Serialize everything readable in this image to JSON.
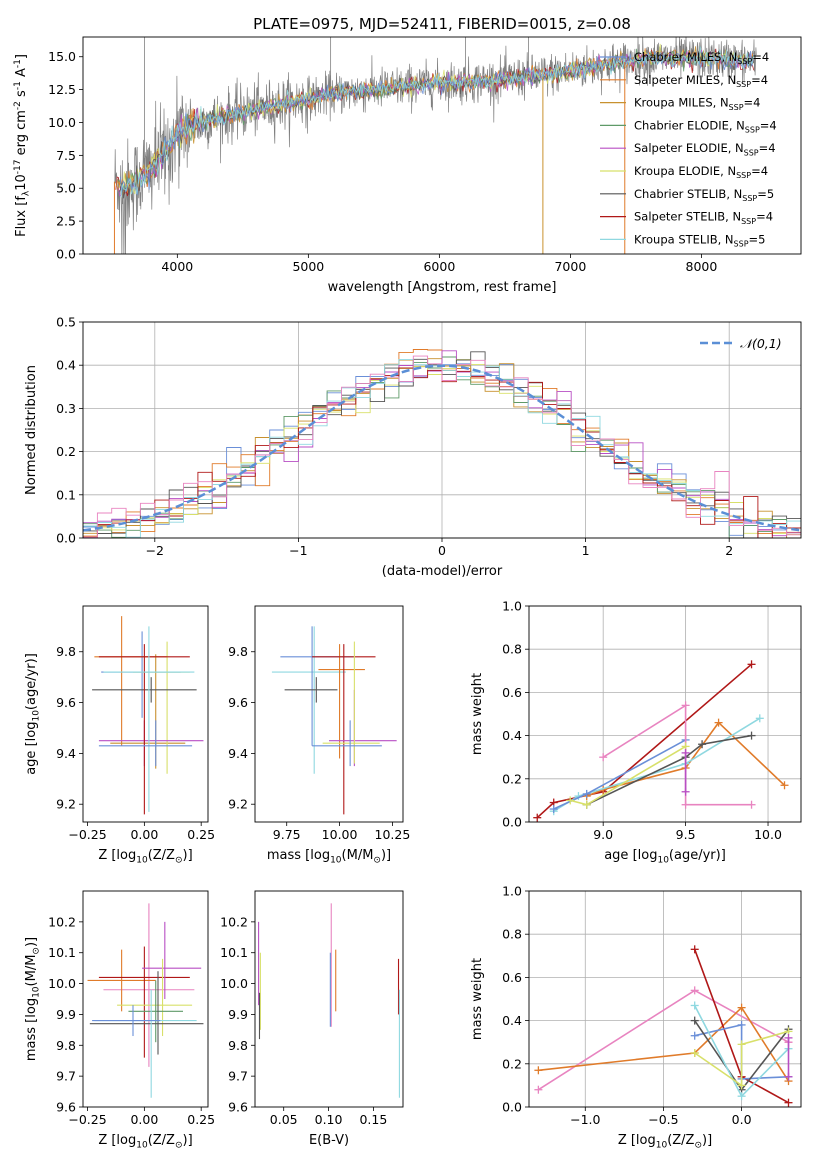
{
  "colors": {
    "chabrier_miles": "#6a8fd8",
    "salpeter_miles": "#e07b2a",
    "kroupa_miles": "#c8912f",
    "chabrier_elodie": "#5f9a68",
    "salpeter_elodie": "#b84fc4",
    "kroupa_elodie": "#d8e06a",
    "chabrier_stelib": "#555555",
    "salpeter_stelib": "#b01818",
    "kroupa_stelib": "#8fd8e0",
    "pink": "#e884c0",
    "spectrum": "#808080",
    "normal": "#5b8fd6",
    "grid": "#b0b0b0"
  },
  "chart_data": [
    {
      "id": "spectrum",
      "type": "line",
      "title": "PLATE=0975, MJD=52411, FIBERID=0015, z=0.08",
      "xlabel": "wavelength [Angstrom, rest frame]",
      "ylabel": "Flux [f$_\\lambda$10$^{-17}$ erg cm$^{-2}$ s$^{-1}$ A$^{-1}$]",
      "xlim": [
        3280,
        8760
      ],
      "ylim": [
        0,
        16.5
      ],
      "xticks": [
        "4000",
        "5000",
        "6000",
        "7000",
        "8000"
      ],
      "yticks": [
        "0.0",
        "2.5",
        "5.0",
        "7.5",
        "10.0",
        "12.5",
        "15.0"
      ],
      "grid": false,
      "legend_position": "top-right",
      "legend": [
        {
          "label": "Chabrier MILES, N$_{SSP}$=4",
          "color": "chabrier_miles"
        },
        {
          "label": "Salpeter MILES, N$_{SSP}$=4",
          "color": "salpeter_miles"
        },
        {
          "label": "Kroupa MILES, N$_{SSP}$=4",
          "color": "kroupa_miles"
        },
        {
          "label": "Chabrier ELODIE, N$_{SSP}$=4",
          "color": "chabrier_elodie"
        },
        {
          "label": "Salpeter ELODIE, N$_{SSP}$=4",
          "color": "salpeter_elodie"
        },
        {
          "label": "Kroupa ELODIE, N$_{SSP}$=4",
          "color": "kroupa_elodie"
        },
        {
          "label": "Chabrier STELIB, N$_{SSP}$=5",
          "color": "chabrier_stelib"
        },
        {
          "label": "Salpeter STELIB, N$_{SSP}$=4",
          "color": "salpeter_stelib"
        },
        {
          "label": "Kroupa STELIB, N$_{SSP}$=5",
          "color": "kroupa_stelib"
        }
      ],
      "model_curve": {
        "x": [
          3520,
          3600,
          3700,
          3800,
          3900,
          4000,
          4100,
          4300,
          4500,
          4800,
          5200,
          5600,
          6000,
          6400,
          6800,
          7200,
          7600,
          8000,
          8400
        ],
        "y": [
          5.5,
          5.0,
          5.6,
          6.5,
          7.6,
          9.0,
          9.8,
          10.3,
          10.8,
          11.4,
          12.2,
          12.6,
          13.0,
          13.2,
          13.6,
          14.3,
          14.9,
          14.9,
          14.6
        ]
      }
    },
    {
      "id": "histogram",
      "type": "line",
      "xlabel": "(data-model)/error",
      "ylabel": "Normed distribution",
      "xlim": [
        -2.5,
        2.5
      ],
      "ylim": [
        0,
        0.5
      ],
      "xticks": [
        "−2",
        "−1",
        "0",
        "1",
        "2"
      ],
      "yticks": [
        "0.0",
        "0.1",
        "0.2",
        "0.3",
        "0.4",
        "0.5"
      ],
      "grid": true,
      "legend_position": "top-right",
      "legend": [
        {
          "label": "$\\mathcal{N}(0,1)$",
          "color": "normal"
        }
      ]
    },
    {
      "id": "age_vs_Z",
      "type": "scatter",
      "xlabel": "Z [log$_{10}$(Z/Z$_\\odot$)]",
      "ylabel": "age  [log$_{10}$(age/yr)]",
      "xlim": [
        -0.27,
        0.28
      ],
      "ylim": [
        9.13,
        9.98
      ],
      "xticks": [
        "−0.25",
        "0.00",
        "0.25"
      ],
      "yticks": [
        "9.2",
        "9.4",
        "9.6",
        "9.8"
      ],
      "points": [
        {
          "x": -0.01,
          "y": 9.72,
          "xerr": [
            0.18,
            0.17
          ],
          "yerr": [
            0.18,
            0.16
          ],
          "color": "chabrier_miles"
        },
        {
          "x": -0.1,
          "y": 9.78,
          "xerr": [
            0.12,
            0.2
          ],
          "yerr": [
            0.35,
            0.16
          ],
          "color": "salpeter_miles"
        },
        {
          "x": 0.05,
          "y": 9.44,
          "xerr": [
            0.2,
            0.13
          ],
          "yerr": [
            0.1,
            0.35
          ],
          "color": "kroupa_miles"
        },
        {
          "x": 0.1,
          "y": 9.72,
          "xerr": [
            0.15,
            0.1
          ],
          "yerr": [
            0.4,
            0.12
          ],
          "color": "kroupa_elodie"
        },
        {
          "x": 0.0,
          "y": 9.45,
          "xerr": [
            0.2,
            0.26
          ],
          "yerr": [
            0.1,
            0.08
          ],
          "color": "salpeter_elodie"
        },
        {
          "x": 0.03,
          "y": 9.65,
          "xerr": [
            0.26,
            0.2
          ],
          "yerr": [
            0.05,
            0.05
          ],
          "color": "chabrier_stelib"
        },
        {
          "x": 0.0,
          "y": 9.78,
          "xerr": [
            0.2,
            0.2
          ],
          "yerr": [
            0.62,
            0.05
          ],
          "color": "salpeter_stelib"
        },
        {
          "x": 0.02,
          "y": 9.72,
          "xerr": [
            0.2,
            0.2
          ],
          "yerr": [
            0.55,
            0.18
          ],
          "color": "kroupa_stelib"
        },
        {
          "x": 0.05,
          "y": 9.43,
          "xerr": [
            0.25,
            0.16
          ],
          "yerr": [
            0.08,
            0.1
          ],
          "color": "chabrier_miles"
        }
      ]
    },
    {
      "id": "age_vs_mass",
      "type": "scatter",
      "xlabel": "mass [log$_{10}$(M/M$_\\odot$)]",
      "ylabel": "",
      "xlim": [
        9.6,
        10.3
      ],
      "ylim": [
        9.13,
        9.98
      ],
      "xticks": [
        "9.75",
        "10.00",
        "10.25"
      ],
      "yticks": [
        "9.2",
        "9.4",
        "9.6",
        "9.8"
      ],
      "points": [
        {
          "x": 9.88,
          "y": 9.72,
          "xerr": [
            0.2,
            0.15
          ],
          "yerr": [
            0.4,
            0.18
          ],
          "color": "kroupa_stelib"
        },
        {
          "x": 9.87,
          "y": 9.78,
          "xerr": [
            0.15,
            0.2
          ],
          "yerr": [
            0.35,
            0.12
          ],
          "color": "chabrier_miles"
        },
        {
          "x": 10.0,
          "y": 9.73,
          "xerr": [
            0.1,
            0.12
          ],
          "yerr": [
            0.35,
            0.1
          ],
          "color": "salpeter_miles"
        },
        {
          "x": 9.89,
          "y": 9.65,
          "xerr": [
            0.15,
            0.1
          ],
          "yerr": [
            0.05,
            0.05
          ],
          "color": "chabrier_stelib"
        },
        {
          "x": 10.02,
          "y": 9.78,
          "xerr": [
            0.15,
            0.15
          ],
          "yerr": [
            0.62,
            0.05
          ],
          "color": "salpeter_stelib"
        },
        {
          "x": 10.07,
          "y": 9.45,
          "xerr": [
            0.12,
            0.2
          ],
          "yerr": [
            0.1,
            0.2
          ],
          "color": "salpeter_elodie"
        },
        {
          "x": 10.07,
          "y": 9.44,
          "xerr": [
            0.15,
            0.12
          ],
          "yerr": [
            0.08,
            0.4
          ],
          "color": "kroupa_elodie"
        },
        {
          "x": 10.05,
          "y": 9.43,
          "xerr": [
            0.18,
            0.15
          ],
          "yerr": [
            0.08,
            0.1
          ],
          "color": "chabrier_miles"
        }
      ]
    },
    {
      "id": "weight_vs_age",
      "type": "line",
      "xlabel": "age  [log$_{10}$(age/yr)]",
      "ylabel": "mass weight",
      "xlim": [
        8.55,
        10.2
      ],
      "ylim": [
        0,
        1.0
      ],
      "xticks": [
        "9.0",
        "9.5",
        "10.0"
      ],
      "yticks": [
        "0.0",
        "0.2",
        "0.4",
        "0.6",
        "0.8",
        "1.0"
      ],
      "grid": true,
      "series": [
        {
          "color": "salpeter_stelib",
          "x": [
            8.6,
            8.7,
            9.0,
            9.9
          ],
          "y": [
            0.02,
            0.09,
            0.14,
            0.73
          ]
        },
        {
          "color": "salpeter_miles",
          "x": [
            8.9,
            9.0,
            9.5,
            9.7,
            10.1
          ],
          "y": [
            0.12,
            0.15,
            0.25,
            0.46,
            0.17
          ]
        },
        {
          "color": "kroupa_stelib",
          "x": [
            8.7,
            8.85,
            9.5,
            9.95
          ],
          "y": [
            0.05,
            0.12,
            0.27,
            0.48
          ]
        },
        {
          "color": "chabrier_stelib",
          "x": [
            8.9,
            9.5,
            9.6,
            9.9
          ],
          "y": [
            0.08,
            0.3,
            0.36,
            0.4
          ]
        },
        {
          "color": "chabrier_miles",
          "x": [
            8.7,
            8.9,
            9.5
          ],
          "y": [
            0.06,
            0.13,
            0.38
          ]
        },
        {
          "color": "pink",
          "x": [
            9.0,
            9.5,
            9.5,
            9.9
          ],
          "y": [
            0.3,
            0.54,
            0.08,
            0.08
          ]
        },
        {
          "color": "kroupa_elodie",
          "x": [
            8.8,
            8.9,
            9.5
          ],
          "y": [
            0.1,
            0.08,
            0.35
          ]
        },
        {
          "color": "salpeter_elodie",
          "x": [
            9.5,
            9.5
          ],
          "y": [
            0.14,
            0.32
          ]
        }
      ]
    },
    {
      "id": "mass_vs_Z",
      "type": "scatter",
      "xlabel": "Z [log$_{10}$(Z/Z$_\\odot$)]",
      "ylabel": "mass [log$_{10}$(M/M$_\\odot$)]",
      "xlim": [
        -0.27,
        0.28
      ],
      "ylim": [
        9.6,
        10.3
      ],
      "xticks": [
        "−0.25",
        "0.00",
        "0.25"
      ],
      "yticks": [
        "9.6",
        "9.7",
        "9.8",
        "9.9",
        "10.0",
        "10.1",
        "10.2"
      ],
      "points": [
        {
          "x": 0.02,
          "y": 9.98,
          "xerr": [
            0.2,
            0.2
          ],
          "yerr": [
            0.25,
            0.28
          ],
          "color": "pink"
        },
        {
          "x": -0.1,
          "y": 10.01,
          "xerr": [
            0.15,
            0.15
          ],
          "yerr": [
            0.1,
            0.1
          ],
          "color": "salpeter_miles"
        },
        {
          "x": 0.0,
          "y": 10.02,
          "xerr": [
            0.2,
            0.2
          ],
          "yerr": [
            0.26,
            0.1
          ],
          "color": "salpeter_stelib"
        },
        {
          "x": 0.09,
          "y": 10.05,
          "xerr": [
            0.1,
            0.16
          ],
          "yerr": [
            0.1,
            0.15
          ],
          "color": "salpeter_elodie"
        },
        {
          "x": 0.08,
          "y": 9.93,
          "xerr": [
            0.2,
            0.13
          ],
          "yerr": [
            0.1,
            0.15
          ],
          "color": "kroupa_elodie"
        },
        {
          "x": 0.05,
          "y": 9.91,
          "xerr": [
            0.12,
            0.12
          ],
          "yerr": [
            0.1,
            0.1
          ],
          "color": "chabrier_elodie"
        },
        {
          "x": 0.06,
          "y": 9.87,
          "xerr": [
            0.3,
            0.2
          ],
          "yerr": [
            0.1,
            0.17
          ],
          "color": "chabrier_stelib"
        },
        {
          "x": 0.03,
          "y": 9.88,
          "xerr": [
            0.25,
            0.2
          ],
          "yerr": [
            0.25,
            0.1
          ],
          "color": "kroupa_stelib"
        },
        {
          "x": -0.05,
          "y": 9.88,
          "xerr": [
            0.18,
            0.12
          ],
          "yerr": [
            0.05,
            0.05
          ],
          "color": "chabrier_miles"
        }
      ]
    },
    {
      "id": "mass_vs_ebv",
      "type": "scatter",
      "xlabel": "E(B-V)",
      "ylabel": "",
      "xlim": [
        0.018,
        0.183
      ],
      "ylim": [
        9.6,
        10.3
      ],
      "xticks": [
        "0.05",
        "0.10",
        "0.15"
      ],
      "yticks": [
        "9.6",
        "9.7",
        "9.8",
        "9.9",
        "10.0",
        "10.1",
        "10.2"
      ],
      "points": [
        {
          "x": 0.022,
          "y": 10.05,
          "yerr": [
            0.12,
            0.15
          ],
          "color": "salpeter_elodie"
        },
        {
          "x": 0.024,
          "y": 9.93,
          "yerr": [
            0.08,
            0.17
          ],
          "color": "kroupa_elodie"
        },
        {
          "x": 0.023,
          "y": 9.87,
          "yerr": [
            0.05,
            0.1
          ],
          "color": "chabrier_stelib"
        },
        {
          "x": 0.103,
          "y": 9.98,
          "yerr": [
            0.12,
            0.28
          ],
          "color": "pink"
        },
        {
          "x": 0.102,
          "y": 9.98,
          "yerr": [
            0.12,
            0.12
          ],
          "color": "chabrier_miles"
        },
        {
          "x": 0.108,
          "y": 10.01,
          "yerr": [
            0.1,
            0.1
          ],
          "color": "salpeter_miles"
        },
        {
          "x": 0.178,
          "y": 10.02,
          "yerr": [
            0.12,
            0.06
          ],
          "color": "salpeter_stelib"
        },
        {
          "x": 0.179,
          "y": 9.88,
          "yerr": [
            0.25,
            0.1
          ],
          "color": "kroupa_stelib"
        }
      ]
    },
    {
      "id": "weight_vs_Z",
      "type": "line",
      "xlabel": "Z [log$_{10}$(Z/Z$_\\odot$)]",
      "ylabel": "mass weight",
      "xlim": [
        -1.36,
        0.38
      ],
      "ylim": [
        0,
        1.0
      ],
      "xticks": [
        "−1.0",
        "−0.5",
        "0.0"
      ],
      "yticks": [
        "0.0",
        "0.2",
        "0.4",
        "0.6",
        "0.8",
        "1.0"
      ],
      "grid": true,
      "series": [
        {
          "color": "pink",
          "x": [
            -1.3,
            -0.3,
            0.3,
            0.3
          ],
          "y": [
            0.08,
            0.54,
            0.3,
            0.3
          ]
        },
        {
          "color": "salpeter_miles",
          "x": [
            -1.3,
            -0.3,
            0.0,
            0.3
          ],
          "y": [
            0.17,
            0.25,
            0.46,
            0.12
          ]
        },
        {
          "color": "salpeter_stelib",
          "x": [
            -0.3,
            0.0,
            0.3
          ],
          "y": [
            0.73,
            0.14,
            0.02
          ]
        },
        {
          "color": "chabrier_miles",
          "x": [
            -0.3,
            0.0,
            0.0,
            0.3
          ],
          "y": [
            0.33,
            0.38,
            0.13,
            0.14
          ]
        },
        {
          "color": "chabrier_stelib",
          "x": [
            -0.3,
            0.0,
            0.3
          ],
          "y": [
            0.4,
            0.08,
            0.36
          ]
        },
        {
          "color": "kroupa_stelib",
          "x": [
            -0.3,
            0.0,
            0.3
          ],
          "y": [
            0.47,
            0.05,
            0.27
          ]
        },
        {
          "color": "kroupa_elodie",
          "x": [
            -0.3,
            0.0,
            0.0,
            0.3
          ],
          "y": [
            0.25,
            0.1,
            0.29,
            0.35
          ]
        },
        {
          "color": "salpeter_elodie",
          "x": [
            0.3,
            0.3
          ],
          "y": [
            0.14,
            0.32
          ]
        }
      ]
    }
  ]
}
